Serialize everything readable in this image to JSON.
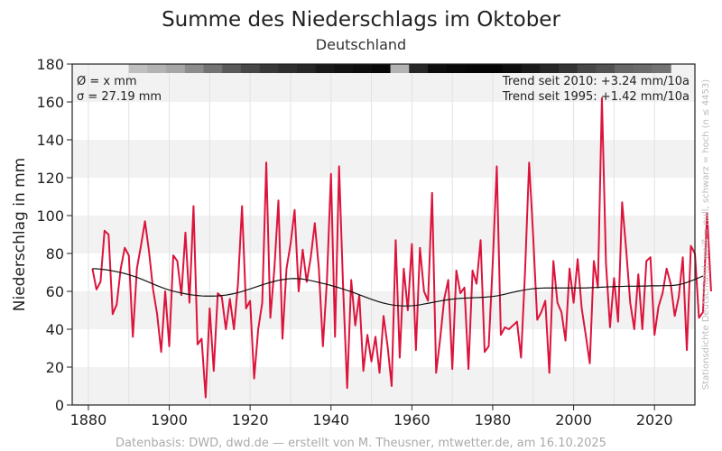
{
  "header": {
    "title": "Summe des Niederschlags im Oktober",
    "subtitle": "Deutschland"
  },
  "stats": {
    "mean": "Ø = x mm",
    "sigma": "σ = 27.19 mm",
    "trend_2010": "Trend seit 2010: +3.24 mm/10a",
    "trend_1995": "Trend seit 1995: +1.42 mm/10a"
  },
  "footer": {
    "source": "Datenbasis: DWD, dwd.de — erstellt von M. Theusner, mtwetter.de, am 16.10.2025"
  },
  "side_note": "Stationsdichte Deutschland: weiß = null, schwarz = hoch (n ≤ 4453)",
  "colors": {
    "series": "#dc143c",
    "smooth": "#111111",
    "band": "#f2f2f2"
  },
  "chart_data": {
    "type": "line",
    "title": "Summe des Niederschlags im Oktober",
    "subtitle": "Deutschland",
    "xlabel": "",
    "ylabel": "Niederschlag in mm",
    "xlim": [
      1876,
      2030
    ],
    "ylim": [
      0,
      180
    ],
    "xticks": [
      1880,
      1900,
      1920,
      1940,
      1960,
      1980,
      2000,
      2020
    ],
    "yticks": [
      0,
      20,
      40,
      60,
      80,
      100,
      120,
      140,
      160,
      180
    ],
    "grid": true,
    "series": [
      {
        "name": "Oktobersumme",
        "x_start": 1881,
        "values": [
          72,
          61,
          65,
          92,
          90,
          48,
          53,
          72,
          83,
          79,
          36,
          72,
          84,
          97,
          81,
          61,
          48,
          28,
          60,
          31,
          79,
          76,
          58,
          91,
          54,
          105,
          32,
          35,
          4,
          51,
          18,
          59,
          57,
          40,
          56,
          40,
          64,
          105,
          51,
          55,
          14,
          40,
          54,
          128,
          46,
          72,
          108,
          35,
          72,
          85,
          103,
          60,
          82,
          65,
          78,
          96,
          72,
          31,
          66,
          122,
          36,
          126,
          62,
          9,
          66,
          42,
          58,
          18,
          37,
          23,
          36,
          17,
          47,
          31,
          10,
          87,
          25,
          72,
          50,
          85,
          29,
          83,
          60,
          55,
          112,
          17,
          35,
          56,
          66,
          19,
          71,
          59,
          62,
          19,
          71,
          64,
          87,
          28,
          31,
          75,
          126,
          37,
          41,
          40,
          42,
          44,
          25,
          71,
          128,
          89,
          45,
          49,
          55,
          17,
          76,
          54,
          49,
          34,
          72,
          54,
          77,
          51,
          37,
          22,
          76,
          62,
          162,
          75,
          41,
          67,
          44,
          107,
          82,
          54,
          40,
          69,
          40,
          76,
          78,
          37,
          52,
          59,
          72,
          64,
          47,
          57,
          78,
          29,
          84,
          80,
          46,
          49,
          101,
          60
        ]
      },
      {
        "name": "Glättung",
        "x_start": 1881,
        "values": [
          72,
          71.9,
          71.7,
          71.5,
          71.2,
          70.8,
          70.4,
          69.9,
          69.4,
          68.8,
          68.1,
          67.4,
          66.6,
          65.7,
          64.8,
          63.9,
          63,
          62.2,
          61.4,
          60.7,
          60.1,
          59.6,
          59.1,
          58.7,
          58.3,
          58,
          57.8,
          57.6,
          57.5,
          57.5,
          57.5,
          57.6,
          57.8,
          58,
          58.4,
          58.8,
          59.3,
          59.9,
          60.6,
          61.3,
          62,
          62.7,
          63.4,
          64.1,
          64.7,
          65.3,
          65.8,
          66.2,
          66.5,
          66.7,
          66.8,
          66.7,
          66.5,
          66.1,
          65.7,
          65.2,
          64.7,
          64.2,
          63.7,
          63.1,
          62.5,
          61.9,
          61.2,
          60.5,
          59.8,
          59,
          58.2,
          57.4,
          56.6,
          55.8,
          55.1,
          54.4,
          53.8,
          53.3,
          52.9,
          52.6,
          52.4,
          52.3,
          52.3,
          52.4,
          52.6,
          52.9,
          53.3,
          53.7,
          54.1,
          54.5,
          54.9,
          55.3,
          55.6,
          55.9,
          56.1,
          56.3,
          56.4,
          56.5,
          56.6,
          56.7,
          56.8,
          56.9,
          57.1,
          57.3,
          57.6,
          58,
          58.5,
          59,
          59.5,
          60,
          60.4,
          60.8,
          61.1,
          61.4,
          61.6,
          61.7,
          61.8,
          61.8,
          61.8,
          61.8,
          61.8,
          61.8,
          61.8,
          61.8,
          61.8,
          61.8,
          61.8,
          61.9,
          62,
          62.1,
          62.2,
          62.3,
          62.4,
          62.5,
          62.6,
          62.6,
          62.7,
          62.7,
          62.7,
          62.7,
          62.8,
          62.8,
          62.9,
          62.9,
          62.9,
          63,
          63,
          63,
          63.2,
          63.5,
          64,
          64.7,
          65.5,
          66.3,
          67.2,
          68.1
        ]
      }
    ],
    "station_density_gray": [
      0.25,
      0.3,
      0.35,
      0.45,
      0.55,
      0.65,
      0.72,
      0.78,
      0.82,
      0.85,
      0.9,
      0.93,
      0.95,
      0.97,
      0.3,
      0.85,
      0.95,
      0.97,
      0.98,
      0.98,
      0.95,
      0.9,
      0.85,
      0.8,
      0.72,
      0.68,
      0.6,
      0.58,
      0.55
    ]
  }
}
